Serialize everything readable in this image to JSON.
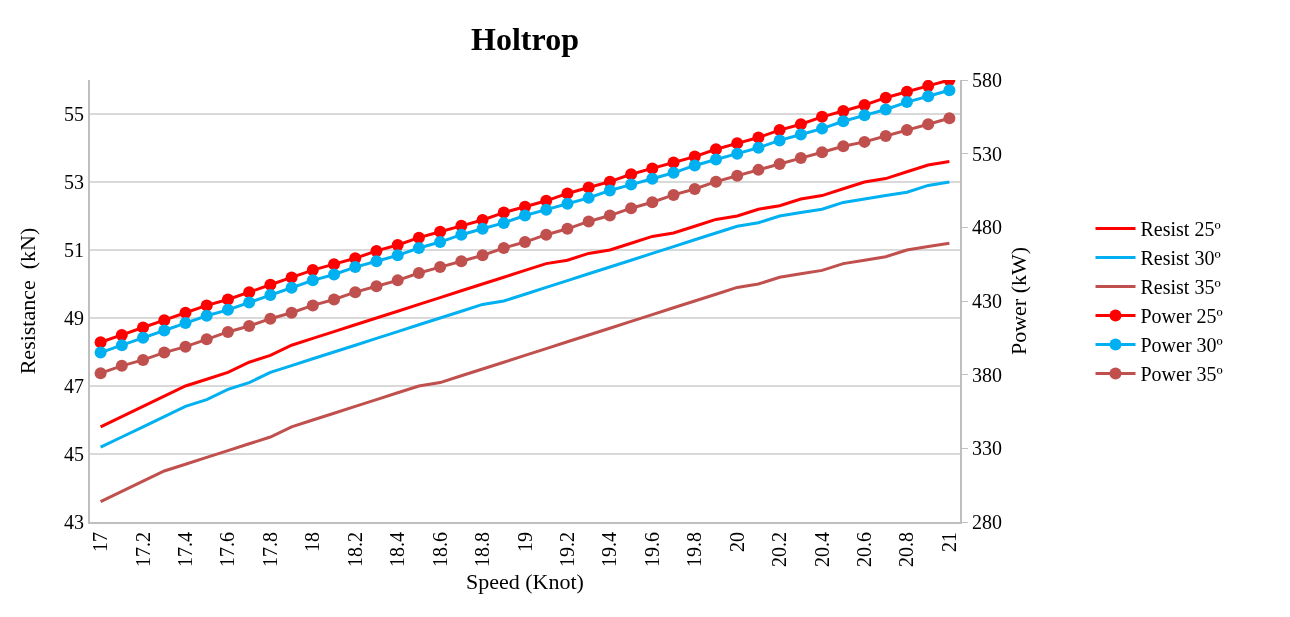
{
  "chart_data": {
    "type": "line",
    "title": "Holtrop",
    "xlabel": "Speed (Knot)",
    "ylabel": "Resistance  (kN)",
    "y2label": "Power (kW)",
    "categories": [
      "17",
      null,
      "17.2",
      null,
      "17.4",
      null,
      "17.6",
      null,
      "17.8",
      null,
      "18",
      null,
      "18.2",
      null,
      "18.4",
      null,
      "18.6",
      null,
      "18.8",
      null,
      "19",
      null,
      "19.2",
      null,
      "19.4",
      null,
      "19.6",
      null,
      "19.8",
      null,
      "20",
      null,
      "20.2",
      null,
      "20.4",
      null,
      "20.6",
      null,
      "20.8",
      null,
      "21"
    ],
    "ylim": [
      43,
      56
    ],
    "yticks": [
      43,
      45,
      47,
      49,
      51,
      53,
      55
    ],
    "y2lim": [
      280,
      580
    ],
    "y2ticks": [
      280,
      330,
      380,
      430,
      480,
      530,
      580
    ],
    "grid": "y",
    "legend": "right",
    "series": [
      {
        "name": "Resist 25º",
        "color": "#ff0000",
        "marker": "none",
        "values": [
          45.8,
          46.1,
          46.4,
          46.7,
          47.0,
          47.2,
          47.4,
          47.7,
          47.9,
          48.2,
          48.4,
          48.6,
          48.8,
          49.0,
          49.2,
          49.4,
          49.6,
          49.8,
          50.0,
          50.2,
          50.4,
          50.6,
          50.7,
          50.9,
          51.0,
          51.2,
          51.4,
          51.5,
          51.7,
          51.9,
          52.0,
          52.2,
          52.3,
          52.5,
          52.6,
          52.8,
          53.0,
          53.1,
          53.3,
          53.5,
          53.6
        ]
      },
      {
        "name": "Resist 30º",
        "color": "#00b0f0",
        "marker": "none",
        "values": [
          45.2,
          45.5,
          45.8,
          46.1,
          46.4,
          46.6,
          46.9,
          47.1,
          47.4,
          47.6,
          47.8,
          48.0,
          48.2,
          48.4,
          48.6,
          48.8,
          49.0,
          49.2,
          49.4,
          49.5,
          49.7,
          49.9,
          50.1,
          50.3,
          50.5,
          50.7,
          50.9,
          51.1,
          51.3,
          51.5,
          51.7,
          51.8,
          52.0,
          52.1,
          52.2,
          52.4,
          52.5,
          52.6,
          52.7,
          52.9,
          53.0
        ]
      },
      {
        "name": "Resist 35º",
        "color": "#c0504d",
        "marker": "none",
        "values": [
          43.6,
          43.9,
          44.2,
          44.5,
          44.7,
          44.9,
          45.1,
          45.3,
          45.5,
          45.8,
          46.0,
          46.2,
          46.4,
          46.6,
          46.8,
          47.0,
          47.1,
          47.3,
          47.5,
          47.7,
          47.9,
          48.1,
          48.3,
          48.5,
          48.7,
          48.9,
          49.1,
          49.3,
          49.5,
          49.7,
          49.9,
          50.0,
          50.2,
          50.3,
          50.4,
          50.6,
          50.7,
          50.8,
          51.0,
          51.1,
          51.2
        ]
      },
      {
        "name": "Power 25º",
        "color": "#ff0000",
        "marker": "circle",
        "axis": "y2",
        "values": [
          402,
          407,
          412,
          417,
          422,
          427,
          431,
          436,
          441,
          446,
          451,
          455,
          459,
          464,
          468,
          473,
          477,
          481,
          485,
          490,
          494,
          498,
          503,
          507,
          511,
          516,
          520,
          524,
          528,
          533,
          537,
          541,
          546,
          550,
          555,
          559,
          563,
          568,
          572,
          576,
          580
        ]
      },
      {
        "name": "Power 30º",
        "color": "#00b0f0",
        "marker": "circle",
        "axis": "y2",
        "values": [
          395,
          400,
          405,
          410,
          415,
          420,
          424,
          429,
          434,
          439,
          444,
          448,
          453,
          457,
          461,
          466,
          470,
          475,
          479,
          483,
          488,
          492,
          496,
          500,
          505,
          509,
          513,
          517,
          522,
          526,
          530,
          534,
          539,
          543,
          547,
          552,
          556,
          560,
          565,
          569,
          573
        ]
      },
      {
        "name": "Power 35º",
        "color": "#c0504d",
        "marker": "circle",
        "axis": "y2",
        "values": [
          381,
          386,
          390,
          395,
          399,
          404,
          409,
          413,
          418,
          422,
          427,
          431,
          436,
          440,
          444,
          449,
          453,
          457,
          461,
          466,
          470,
          475,
          479,
          484,
          488,
          493,
          497,
          502,
          506,
          511,
          515,
          519,
          523,
          527,
          531,
          535,
          538,
          542,
          546,
          550,
          554
        ]
      }
    ]
  }
}
